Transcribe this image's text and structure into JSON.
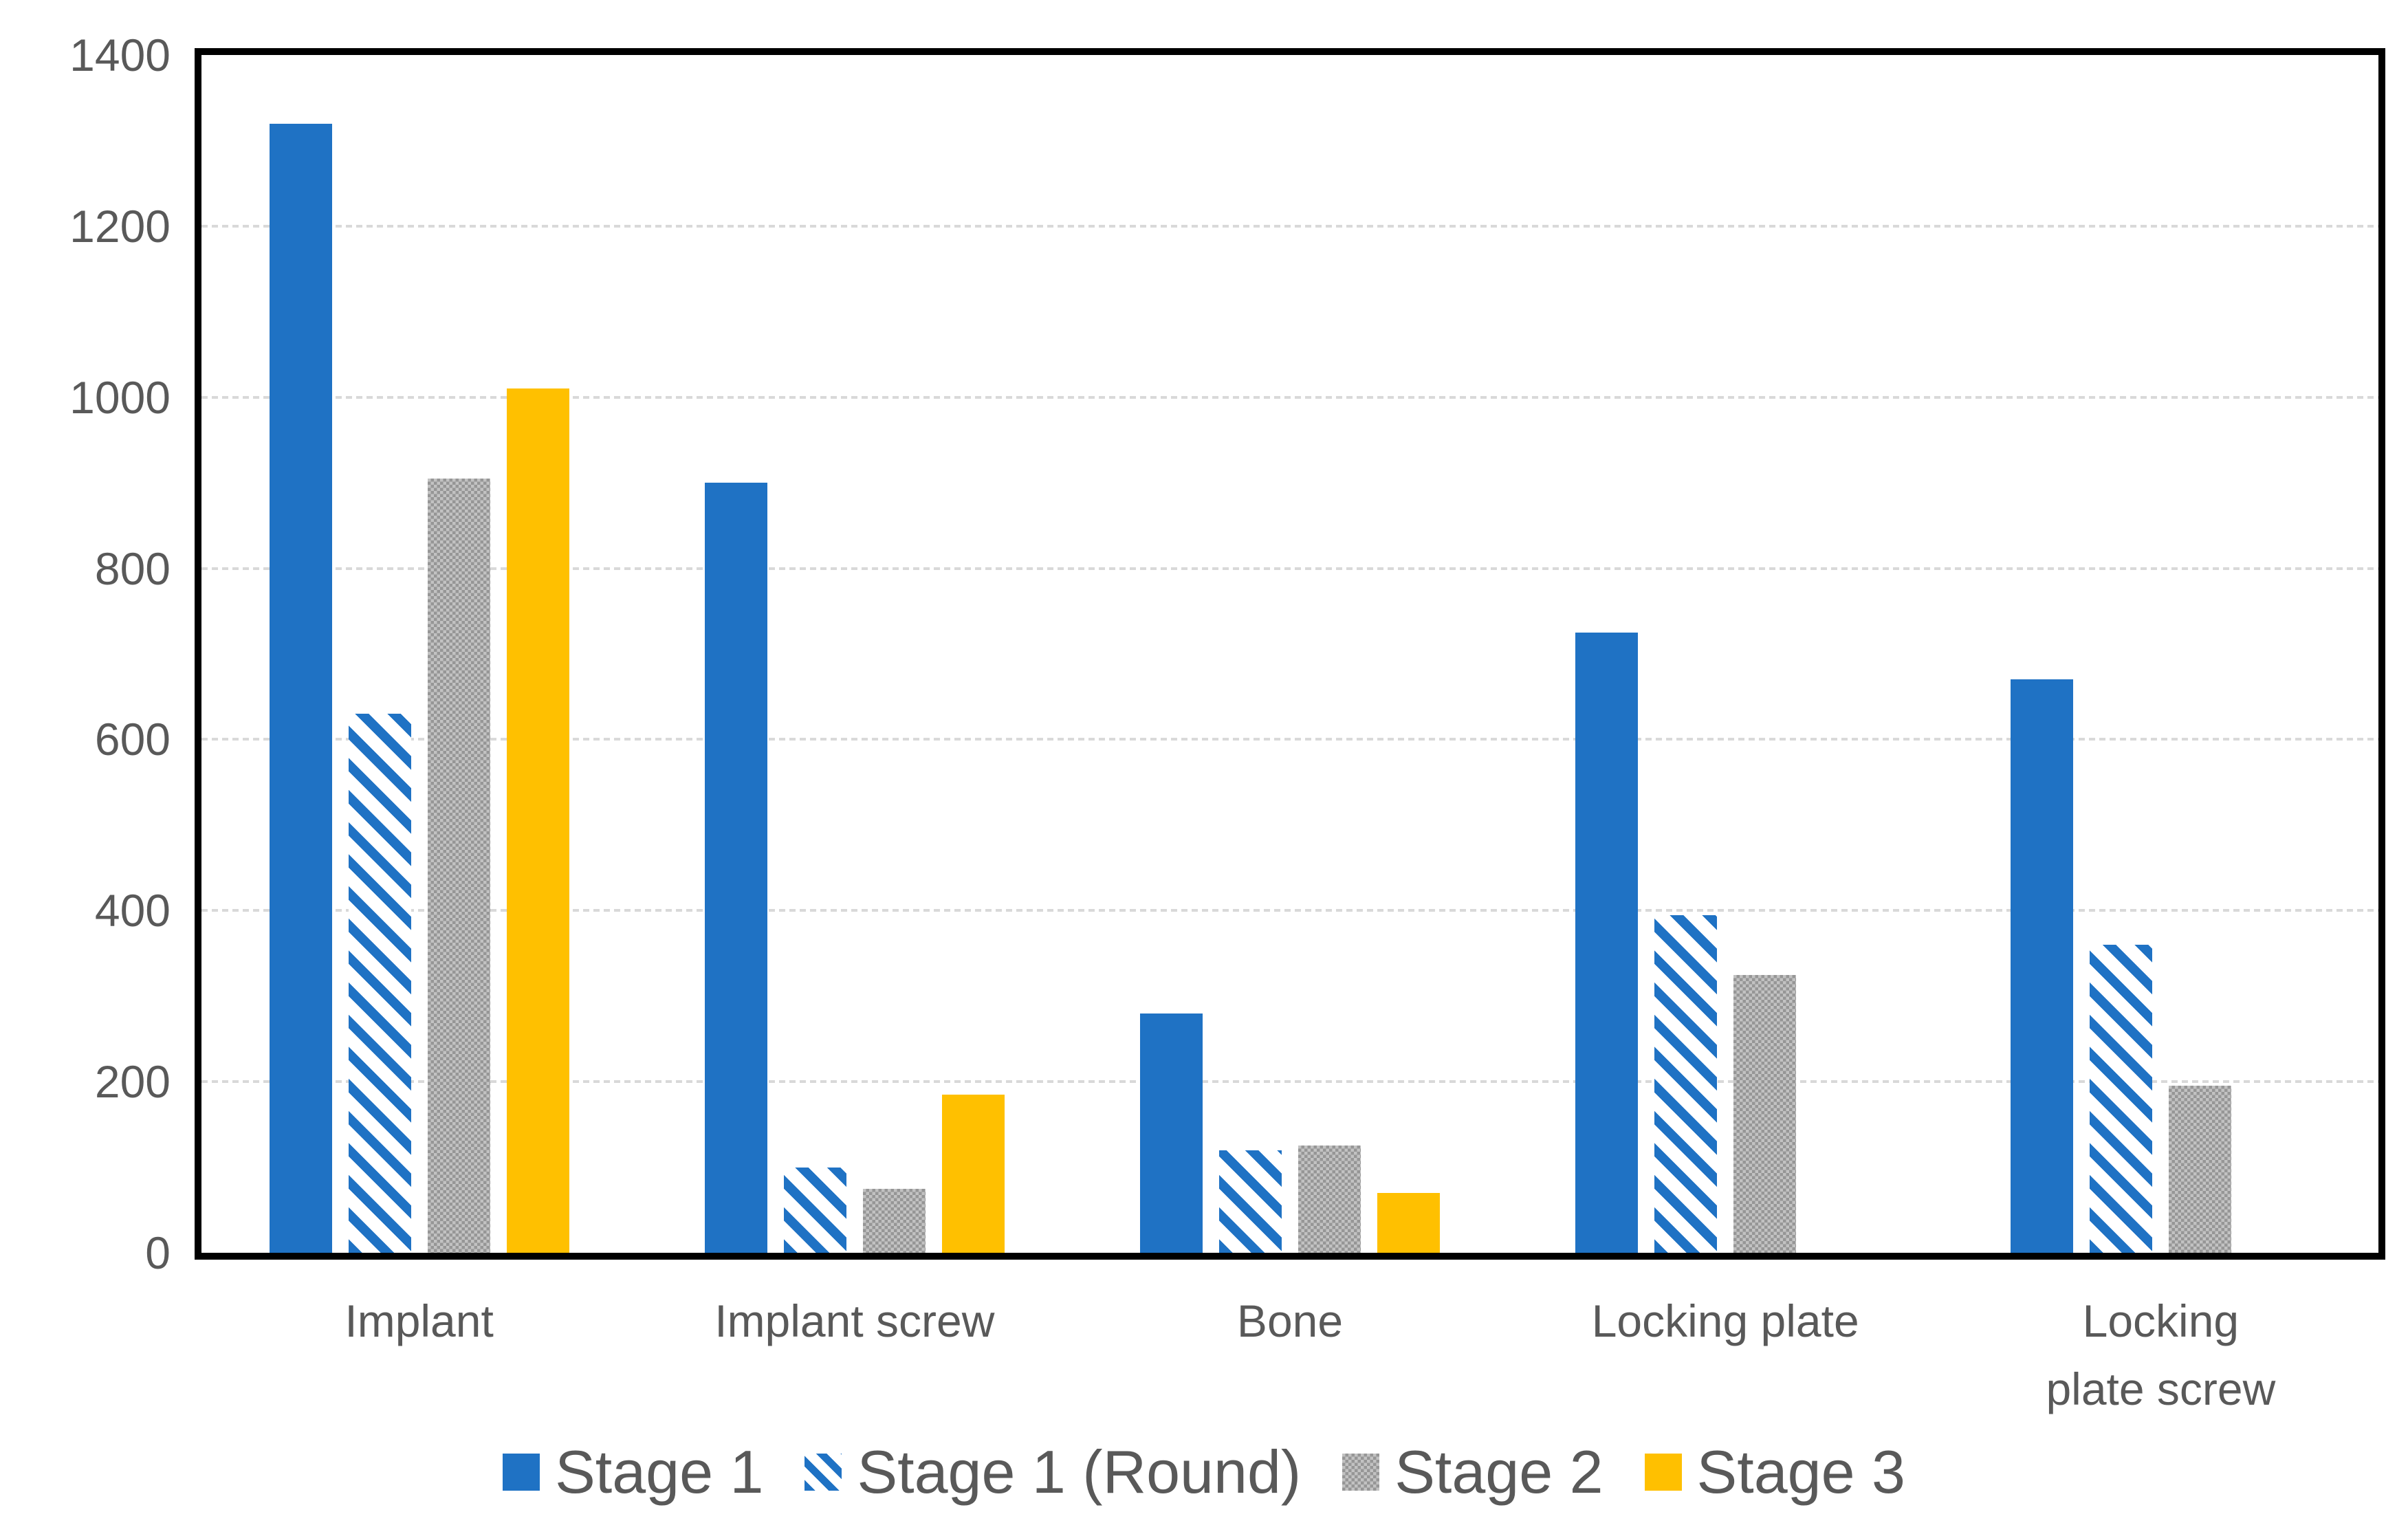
{
  "chart_data": {
    "type": "bar",
    "title": "",
    "categories": [
      "Implant",
      "Implant screw",
      "Bone",
      "Locking plate",
      "Locking plate screw"
    ],
    "series": [
      {
        "name": "Stage 1",
        "style": "solid",
        "color": "#1F72C4",
        "values": [
          1320,
          900,
          280,
          725,
          670
        ]
      },
      {
        "name": "Stage 1 (Round)",
        "style": "diagonal-stripe",
        "color": "#1F72C4",
        "values": [
          630,
          100,
          120,
          395,
          360
        ]
      },
      {
        "name": "Stage 2",
        "style": "checker",
        "color": "#A6A6A6",
        "values": [
          905,
          75,
          125,
          325,
          195
        ]
      },
      {
        "name": "Stage 3",
        "style": "solid",
        "color": "#FFC000",
        "values": [
          1010,
          185,
          70,
          0,
          0
        ]
      }
    ],
    "ylim": [
      0,
      1400
    ],
    "ytick_step": 200,
    "yticks": [
      "0",
      "200",
      "400",
      "600",
      "800",
      "1000",
      "1200",
      "1400"
    ],
    "grid": true,
    "gridline_color": "#D9D9D9",
    "plot_border_color": "#000000",
    "axis_text_color": "#595959",
    "legend_position": "bottom"
  }
}
